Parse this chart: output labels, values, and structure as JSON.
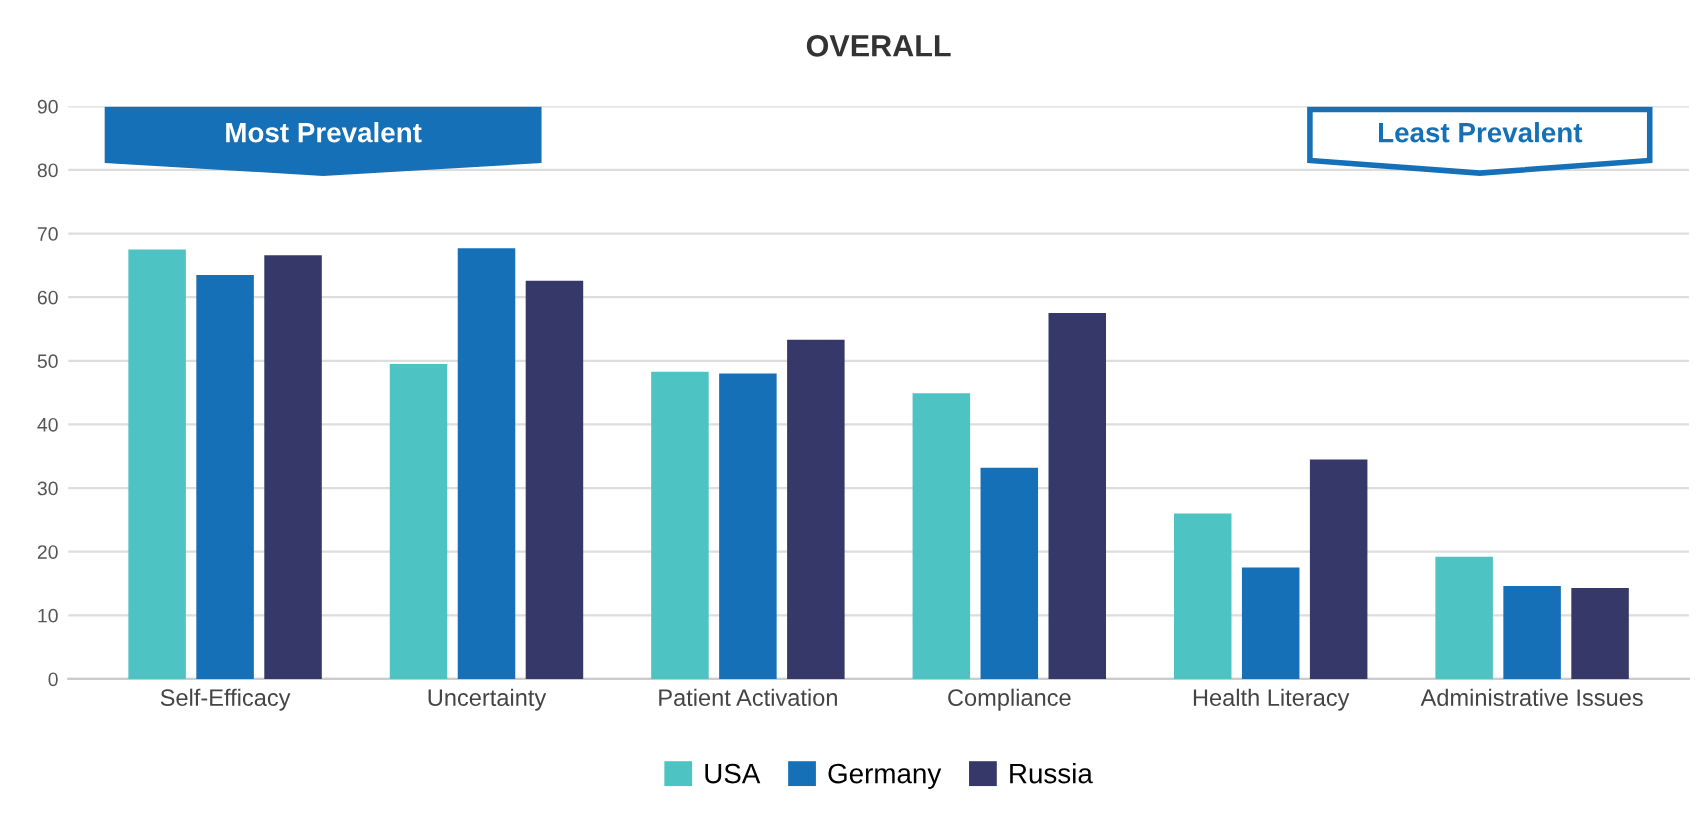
{
  "chart_data": {
    "type": "bar",
    "title": "OVERALL",
    "categories": [
      "Self-Efficacy",
      "Uncertainty",
      "Patient Activation",
      "Compliance",
      "Health Literacy",
      "Administrative Issues"
    ],
    "series": [
      {
        "name": "USA",
        "color": "#4dc3c3",
        "values": [
          67.5,
          49.5,
          48.3,
          44.9,
          26.0,
          19.2
        ]
      },
      {
        "name": "Germany",
        "color": "#1570b8",
        "values": [
          63.5,
          67.7,
          48.0,
          33.2,
          17.5,
          14.6
        ]
      },
      {
        "name": "Russia",
        "color": "#37386a",
        "values": [
          66.6,
          62.6,
          53.3,
          57.5,
          34.5,
          14.3
        ]
      }
    ],
    "ylim": [
      0,
      90
    ],
    "yticks": [
      0,
      10,
      20,
      30,
      40,
      50,
      60,
      70,
      80,
      90
    ],
    "grid": "y",
    "legend": "bottom",
    "annotations": [
      "Most Prevalent",
      "Least Prevalent"
    ]
  }
}
